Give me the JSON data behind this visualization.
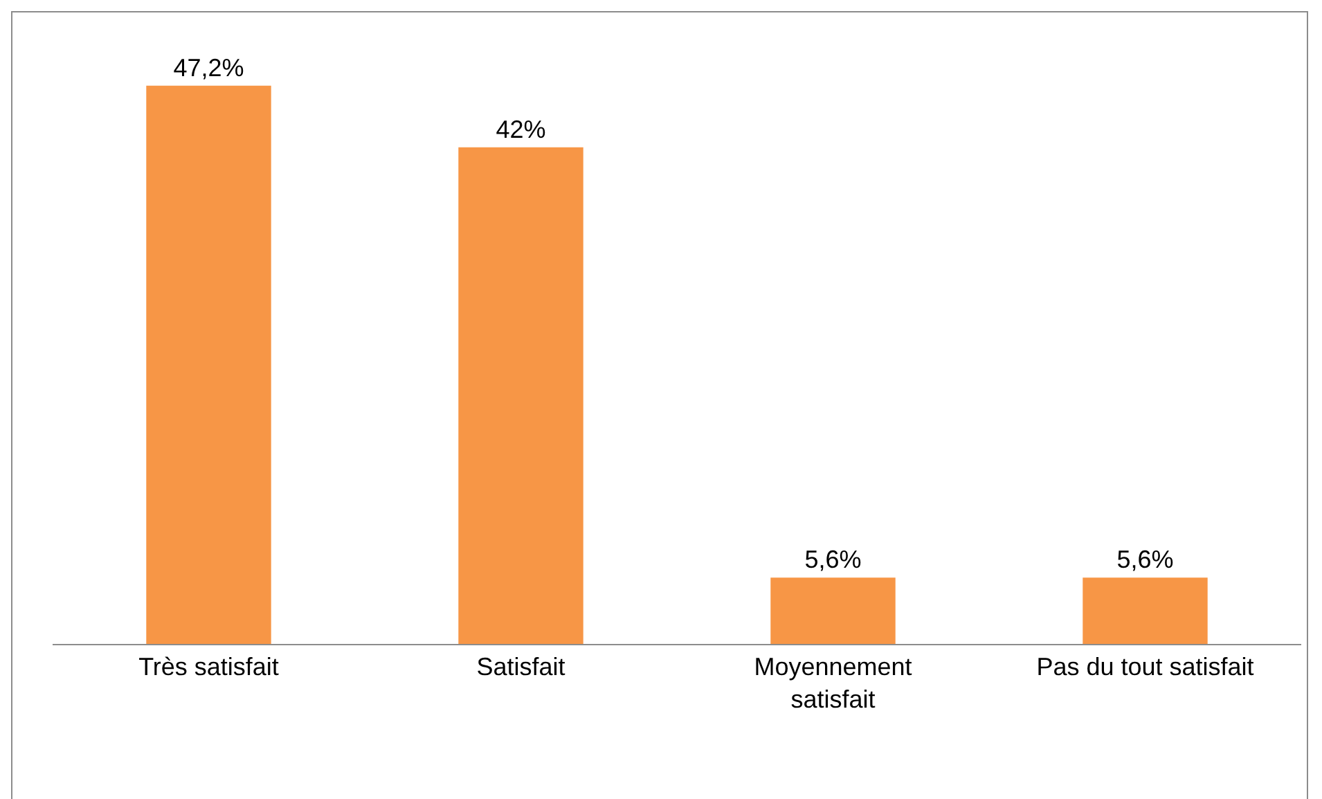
{
  "chart_data": {
    "type": "bar",
    "categories": [
      "Très satisfait",
      "Satisfait",
      "Moyennement satisfait",
      "Pas du tout satisfait"
    ],
    "values": [
      47.2,
      42,
      5.6,
      5.6
    ],
    "value_labels": [
      "47,2%",
      "42%",
      "5,6%",
      "5,6%"
    ],
    "color": "#f79646",
    "grid": false,
    "legend": false
  }
}
